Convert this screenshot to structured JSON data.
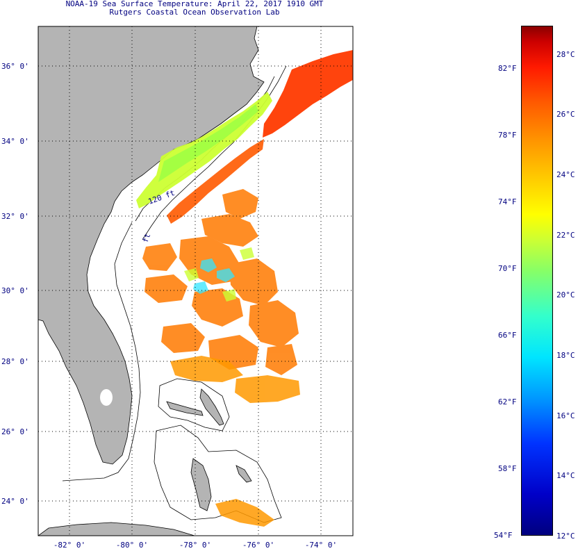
{
  "header": {
    "title": "NOAA-19 Sea Surface Temperature:  April 22, 2017 1910 GMT",
    "subtitle": "Rutgers Coastal Ocean Observation Lab"
  },
  "map": {
    "lat_labels": [
      "36° 0'",
      "34° 0'",
      "32° 0'",
      "30° 0'",
      "28° 0'",
      "26° 0'",
      "24° 0'"
    ],
    "lon_labels": [
      "-82° 0'",
      "-80° 0'",
      "-78° 0'",
      "-76° 0'",
      "-74° 0'"
    ],
    "contour_labels": [
      "120 ft",
      "ft"
    ],
    "colors": {
      "land": "#b4b4b4",
      "ocean": "#ffffff",
      "warm": "#ff4a00",
      "cool": "#ccff33"
    }
  },
  "colorbar": {
    "fahrenheit": [
      "82°F",
      "78°F",
      "74°F",
      "70°F",
      "66°F",
      "62°F",
      "58°F",
      "54°F"
    ],
    "celsius": [
      "28°C",
      "26°C",
      "24°C",
      "22°C",
      "20°C",
      "18°C",
      "16°C",
      "14°C",
      "12°C"
    ]
  }
}
